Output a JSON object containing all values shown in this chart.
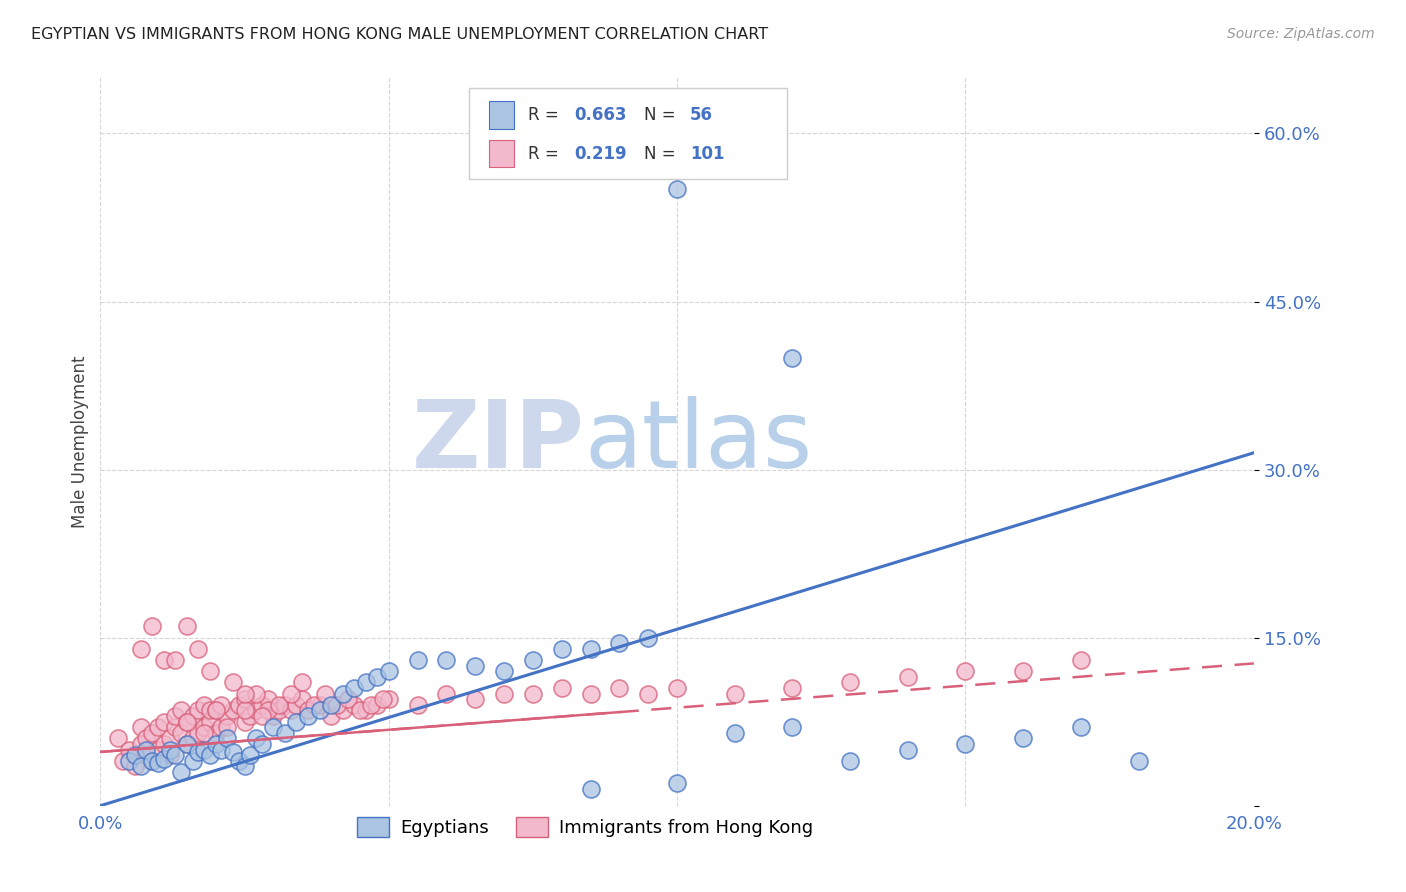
{
  "title": "EGYPTIAN VS IMMIGRANTS FROM HONG KONG MALE UNEMPLOYMENT CORRELATION CHART",
  "source": "Source: ZipAtlas.com",
  "ylabel": "Male Unemployment",
  "xlim": [
    0.0,
    0.2
  ],
  "ylim": [
    0.0,
    0.65
  ],
  "color_egyptian": "#aac4e2",
  "color_hk": "#f2b8cc",
  "color_line_egyptian": "#4472c4",
  "color_line_hk": "#d9607a",
  "color_text_blue": "#4472c4",
  "watermark_zip": "ZIP",
  "watermark_atlas": "atlas",
  "watermark_color_zip": "#ccd8ee",
  "watermark_color_atlas": "#c8daf0",
  "background_color": "#ffffff",
  "eg_R": "0.663",
  "eg_N": "56",
  "hk_R": "0.219",
  "hk_N": "101",
  "eg_line_x0": 0.0,
  "eg_line_y0": 0.0,
  "eg_line_x1": 0.2,
  "eg_line_y1": 0.315,
  "hk_line_x0": 0.0,
  "hk_line_y0": 0.048,
  "hk_line_x1": 0.2,
  "hk_line_y1": 0.127,
  "egyptians_x": [
    0.005,
    0.006,
    0.007,
    0.008,
    0.009,
    0.01,
    0.011,
    0.012,
    0.013,
    0.014,
    0.015,
    0.016,
    0.017,
    0.018,
    0.019,
    0.02,
    0.021,
    0.022,
    0.023,
    0.024,
    0.025,
    0.026,
    0.027,
    0.028,
    0.03,
    0.032,
    0.034,
    0.036,
    0.038,
    0.04,
    0.042,
    0.044,
    0.046,
    0.048,
    0.05,
    0.055,
    0.06,
    0.065,
    0.07,
    0.075,
    0.08,
    0.085,
    0.09,
    0.095,
    0.1,
    0.11,
    0.12,
    0.13,
    0.14,
    0.15,
    0.16,
    0.17,
    0.18,
    0.12,
    0.1,
    0.085
  ],
  "egyptians_y": [
    0.04,
    0.045,
    0.035,
    0.05,
    0.04,
    0.038,
    0.042,
    0.05,
    0.045,
    0.03,
    0.055,
    0.04,
    0.048,
    0.05,
    0.045,
    0.055,
    0.05,
    0.06,
    0.048,
    0.04,
    0.035,
    0.045,
    0.06,
    0.055,
    0.07,
    0.065,
    0.075,
    0.08,
    0.085,
    0.09,
    0.1,
    0.105,
    0.11,
    0.115,
    0.12,
    0.13,
    0.13,
    0.125,
    0.12,
    0.13,
    0.14,
    0.14,
    0.145,
    0.15,
    0.02,
    0.065,
    0.07,
    0.04,
    0.05,
    0.055,
    0.06,
    0.07,
    0.04,
    0.4,
    0.55,
    0.015
  ],
  "hk_x": [
    0.003,
    0.004,
    0.005,
    0.006,
    0.007,
    0.007,
    0.008,
    0.008,
    0.009,
    0.009,
    0.01,
    0.01,
    0.011,
    0.011,
    0.012,
    0.012,
    0.013,
    0.013,
    0.014,
    0.014,
    0.015,
    0.015,
    0.016,
    0.016,
    0.017,
    0.017,
    0.018,
    0.018,
    0.019,
    0.019,
    0.02,
    0.02,
    0.021,
    0.022,
    0.023,
    0.024,
    0.025,
    0.025,
    0.026,
    0.027,
    0.028,
    0.029,
    0.03,
    0.031,
    0.032,
    0.033,
    0.034,
    0.035,
    0.036,
    0.038,
    0.04,
    0.042,
    0.044,
    0.046,
    0.048,
    0.05,
    0.055,
    0.06,
    0.065,
    0.07,
    0.075,
    0.08,
    0.085,
    0.09,
    0.095,
    0.1,
    0.11,
    0.12,
    0.13,
    0.14,
    0.15,
    0.16,
    0.17,
    0.007,
    0.009,
    0.011,
    0.013,
    0.015,
    0.017,
    0.019,
    0.021,
    0.023,
    0.025,
    0.027,
    0.029,
    0.031,
    0.033,
    0.035,
    0.037,
    0.039,
    0.041,
    0.043,
    0.045,
    0.047,
    0.049,
    0.015,
    0.02,
    0.025,
    0.018,
    0.022,
    0.028
  ],
  "hk_y": [
    0.06,
    0.04,
    0.05,
    0.035,
    0.055,
    0.07,
    0.045,
    0.06,
    0.04,
    0.065,
    0.05,
    0.07,
    0.055,
    0.075,
    0.045,
    0.06,
    0.07,
    0.08,
    0.065,
    0.085,
    0.055,
    0.075,
    0.06,
    0.08,
    0.065,
    0.085,
    0.07,
    0.09,
    0.075,
    0.085,
    0.065,
    0.085,
    0.07,
    0.08,
    0.085,
    0.09,
    0.075,
    0.095,
    0.08,
    0.085,
    0.09,
    0.095,
    0.08,
    0.085,
    0.09,
    0.085,
    0.09,
    0.095,
    0.085,
    0.09,
    0.08,
    0.085,
    0.09,
    0.085,
    0.09,
    0.095,
    0.09,
    0.1,
    0.095,
    0.1,
    0.1,
    0.105,
    0.1,
    0.105,
    0.1,
    0.105,
    0.1,
    0.105,
    0.11,
    0.115,
    0.12,
    0.12,
    0.13,
    0.14,
    0.16,
    0.13,
    0.13,
    0.16,
    0.14,
    0.12,
    0.09,
    0.11,
    0.085,
    0.1,
    0.085,
    0.09,
    0.1,
    0.11,
    0.09,
    0.1,
    0.09,
    0.095,
    0.085,
    0.09,
    0.095,
    0.075,
    0.085,
    0.1,
    0.065,
    0.07,
    0.08
  ]
}
